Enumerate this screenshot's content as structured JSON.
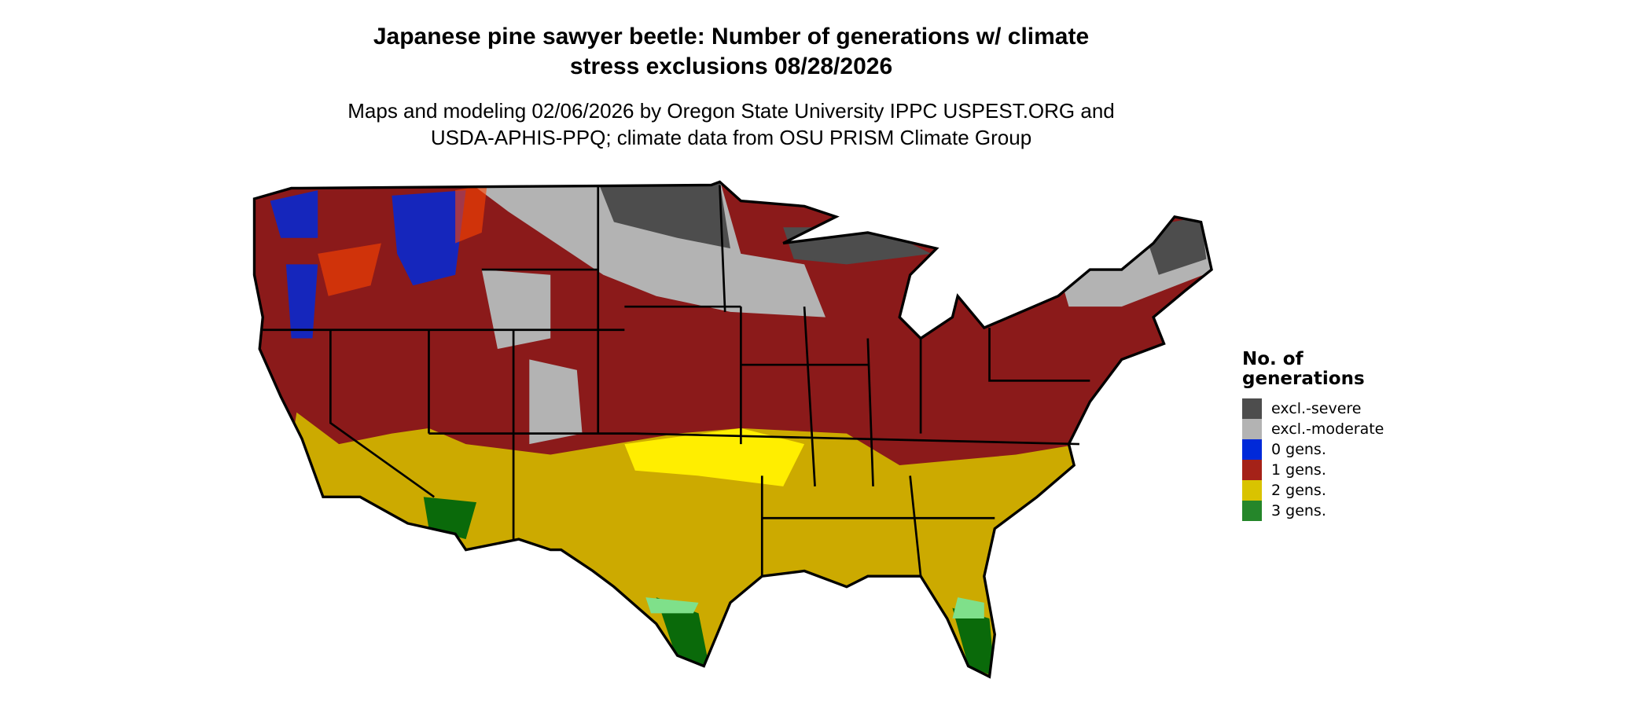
{
  "title": {
    "line1": "Japanese pine sawyer beetle: Number of generations w/ climate",
    "line2": "stress exclusions 08/28/2026"
  },
  "subtitle": {
    "line1": "Maps and modeling 02/06/2026 by Oregon State University IPPC USPEST.ORG and",
    "line2": "USDA-APHIS-PPQ; climate data from OSU PRISM Climate Group"
  },
  "legend": {
    "title": "No. of generations",
    "items": [
      {
        "label": "excl.-severe",
        "color": "#4d4d4d"
      },
      {
        "label": "excl.-moderate",
        "color": "#b3b3b3"
      },
      {
        "label": "0 gens.",
        "color": "#0029d9"
      },
      {
        "label": "1 gens.",
        "color": "#a52218"
      },
      {
        "label": "2 gens.",
        "color": "#d9c300"
      },
      {
        "label": "3 gens.",
        "color": "#25862a"
      }
    ]
  },
  "map_colors": {
    "one_gen_map": "#8b1a1a",
    "two_gen_map": "#ccaa00",
    "two_gen_bright": "#ffee00",
    "three_gen_dark": "#0a6a0a",
    "three_gen_light": "#7fe08a",
    "orange_patches": "#ff4500"
  }
}
